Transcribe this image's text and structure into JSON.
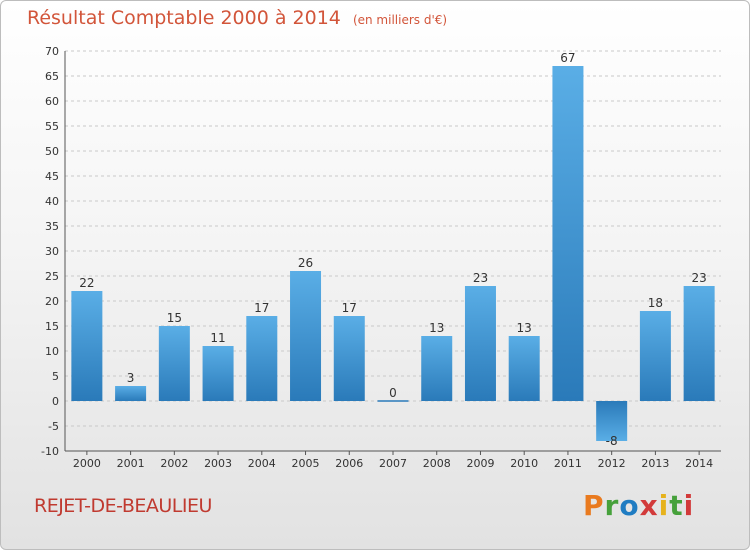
{
  "header": {
    "title": "Résultat Comptable 2000 à 2014",
    "subtitle": "(en milliers d'€)"
  },
  "footer": {
    "commune": "REJET-DE-BEAULIEU",
    "brand": [
      "P",
      "r",
      "o",
      "x",
      "i",
      "t",
      "i"
    ]
  },
  "colors": {
    "title": "#d2553a",
    "bar_light": "#5aaee6",
    "bar_dark": "#2a7ab9",
    "grid": "#c9c9c9"
  },
  "chart_data": {
    "type": "bar",
    "title": "Résultat Comptable 2000 à 2014",
    "subtitle": "(en milliers d'€)",
    "xlabel": "",
    "ylabel": "",
    "categories": [
      "2000",
      "2001",
      "2002",
      "2003",
      "2004",
      "2005",
      "2006",
      "2007",
      "2008",
      "2009",
      "2010",
      "2011",
      "2012",
      "2013",
      "2014"
    ],
    "values": [
      22,
      3,
      15,
      11,
      17,
      26,
      17,
      0,
      13,
      23,
      13,
      67,
      -8,
      18,
      23
    ],
    "ylim": [
      -10,
      70
    ],
    "yticks": [
      -10,
      -5,
      0,
      5,
      10,
      15,
      20,
      25,
      30,
      35,
      40,
      45,
      50,
      55,
      60,
      65,
      70
    ],
    "grid": true
  }
}
